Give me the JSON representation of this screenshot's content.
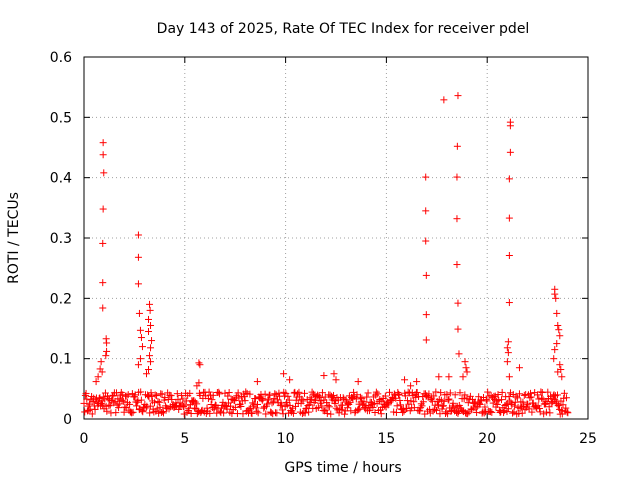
{
  "chart_data": {
    "type": "scatter",
    "title": "Day 143 of 2025, Rate Of TEC Index for receiver pdel",
    "xlabel": "GPS time / hours",
    "ylabel": "ROTI / TECUs",
    "xlim": [
      0,
      25
    ],
    "ylim": [
      0,
      0.6
    ],
    "xticks": [
      "0",
      "5",
      "10",
      "15",
      "20",
      "25"
    ],
    "yticks": [
      "0",
      "0.1",
      "0.2",
      "0.3",
      "0.4",
      "0.5",
      "0.6"
    ],
    "grid": true,
    "marker_color": "#ff0000",
    "marker": "plus",
    "baseline": {
      "x_range": [
        0.0,
        24.0
      ],
      "y_min": 0.008,
      "y_max": 0.045
    },
    "series": [
      {
        "points": [
          [
            0.95,
            0.458
          ],
          [
            0.95,
            0.438
          ],
          [
            0.98,
            0.408
          ],
          [
            0.95,
            0.348
          ],
          [
            0.93,
            0.291
          ],
          [
            0.93,
            0.226
          ],
          [
            0.93,
            0.184
          ],
          [
            1.1,
            0.133
          ],
          [
            1.12,
            0.126
          ],
          [
            1.12,
            0.112
          ],
          [
            1.08,
            0.105
          ],
          [
            0.85,
            0.095
          ],
          [
            0.8,
            0.083
          ],
          [
            0.9,
            0.078
          ],
          [
            0.7,
            0.07
          ],
          [
            0.6,
            0.062
          ],
          [
            2.7,
            0.305
          ],
          [
            2.7,
            0.268
          ],
          [
            2.7,
            0.224
          ],
          [
            2.75,
            0.175
          ],
          [
            2.8,
            0.147
          ],
          [
            2.85,
            0.135
          ],
          [
            2.9,
            0.12
          ],
          [
            2.8,
            0.1
          ],
          [
            2.7,
            0.09
          ],
          [
            3.25,
            0.19
          ],
          [
            3.28,
            0.18
          ],
          [
            3.2,
            0.165
          ],
          [
            3.3,
            0.155
          ],
          [
            3.2,
            0.145
          ],
          [
            3.35,
            0.13
          ],
          [
            3.3,
            0.118
          ],
          [
            3.25,
            0.105
          ],
          [
            3.3,
            0.095
          ],
          [
            3.2,
            0.082
          ],
          [
            3.1,
            0.075
          ],
          [
            5.7,
            0.093
          ],
          [
            5.75,
            0.09
          ],
          [
            5.7,
            0.06
          ],
          [
            5.6,
            0.055
          ],
          [
            8.6,
            0.062
          ],
          [
            9.9,
            0.075
          ],
          [
            10.2,
            0.065
          ],
          [
            11.9,
            0.072
          ],
          [
            12.4,
            0.075
          ],
          [
            12.5,
            0.065
          ],
          [
            13.6,
            0.062
          ],
          [
            15.9,
            0.065
          ],
          [
            16.2,
            0.055
          ],
          [
            16.5,
            0.062
          ],
          [
            16.95,
            0.401
          ],
          [
            16.95,
            0.345
          ],
          [
            16.95,
            0.295
          ],
          [
            16.98,
            0.238
          ],
          [
            16.98,
            0.173
          ],
          [
            16.98,
            0.131
          ],
          [
            17.85,
            0.529
          ],
          [
            17.6,
            0.07
          ],
          [
            18.1,
            0.07
          ],
          [
            18.55,
            0.536
          ],
          [
            18.52,
            0.452
          ],
          [
            18.5,
            0.401
          ],
          [
            18.5,
            0.332
          ],
          [
            18.5,
            0.256
          ],
          [
            18.55,
            0.192
          ],
          [
            18.55,
            0.149
          ],
          [
            18.6,
            0.108
          ],
          [
            18.9,
            0.095
          ],
          [
            18.95,
            0.085
          ],
          [
            19.0,
            0.078
          ],
          [
            18.8,
            0.07
          ],
          [
            21.15,
            0.492
          ],
          [
            21.15,
            0.486
          ],
          [
            21.15,
            0.442
          ],
          [
            21.1,
            0.398
          ],
          [
            21.1,
            0.333
          ],
          [
            21.1,
            0.271
          ],
          [
            21.1,
            0.193
          ],
          [
            21.05,
            0.128
          ],
          [
            21.0,
            0.118
          ],
          [
            21.05,
            0.11
          ],
          [
            21.0,
            0.095
          ],
          [
            21.6,
            0.085
          ],
          [
            21.1,
            0.07
          ],
          [
            23.35,
            0.215
          ],
          [
            23.35,
            0.207
          ],
          [
            23.4,
            0.2
          ],
          [
            23.45,
            0.175
          ],
          [
            23.5,
            0.155
          ],
          [
            23.55,
            0.148
          ],
          [
            23.6,
            0.138
          ],
          [
            23.45,
            0.125
          ],
          [
            23.35,
            0.115
          ],
          [
            23.3,
            0.1
          ],
          [
            23.6,
            0.09
          ],
          [
            23.65,
            0.082
          ],
          [
            23.5,
            0.078
          ],
          [
            23.7,
            0.07
          ]
        ]
      }
    ]
  }
}
